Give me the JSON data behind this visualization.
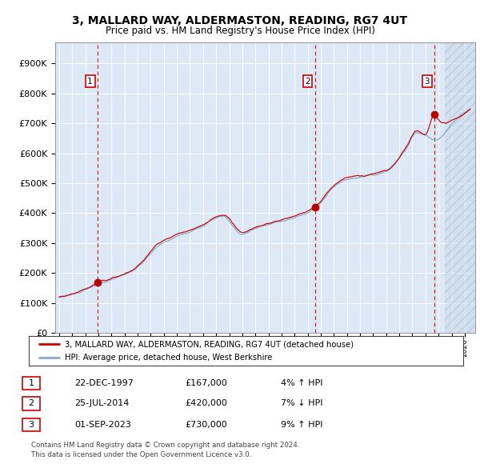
{
  "title": "3, MALLARD WAY, ALDERMASTON, READING, RG7 4UT",
  "subtitle": "Price paid vs. HM Land Registry's House Price Index (HPI)",
  "sale_prices": [
    167000,
    420000,
    730000
  ],
  "sale_years": [
    1997.9167,
    2014.5417,
    2023.6667
  ],
  "red_line_color": "#cc0000",
  "blue_line_color": "#88aacc",
  "plot_bg_color": "#dce8f5",
  "ylabel_ticks": [
    "£0",
    "£100K",
    "£200K",
    "£300K",
    "£400K",
    "£500K",
    "£600K",
    "£700K",
    "£800K",
    "£900K"
  ],
  "ylabel_values": [
    0,
    100000,
    200000,
    300000,
    400000,
    500000,
    600000,
    700000,
    800000,
    900000
  ],
  "xmin": 1994.7,
  "xmax": 2026.8,
  "ymin": 0,
  "ymax": 970000,
  "legend_red": "3, MALLARD WAY, ALDERMASTON, READING, RG7 4UT (detached house)",
  "legend_blue": "HPI: Average price, detached house, West Berkshire",
  "footnote1": "Contains HM Land Registry data © Crown copyright and database right 2024.",
  "footnote2": "This data is licensed under the Open Government Licence v3.0.",
  "table": [
    {
      "label": "1",
      "date": "22-DEC-1997",
      "price": "£167,000",
      "hpi": "4% ↑ HPI"
    },
    {
      "label": "2",
      "date": "25-JUL-2014",
      "price": "£420,000",
      "hpi": "7% ↓ HPI"
    },
    {
      "label": "3",
      "date": "01-SEP-2023",
      "price": "£730,000",
      "hpi": "9% ↑ HPI"
    }
  ],
  "hpi_key_years": [
    1994.7,
    1995.5,
    1997.0,
    1998.0,
    1999.5,
    2001.0,
    2002.5,
    2004.0,
    2005.5,
    2007.5,
    2009.0,
    2010.0,
    2011.5,
    2013.5,
    2014.5,
    2016.0,
    2017.0,
    2018.5,
    2020.0,
    2021.5,
    2022.3,
    2023.0,
    2023.8,
    2024.5,
    2025.5,
    2026.8
  ],
  "hpi_key_vals": [
    115000,
    122000,
    143000,
    163000,
    185000,
    218000,
    288000,
    322000,
    345000,
    388000,
    330000,
    348000,
    368000,
    392000,
    414000,
    487000,
    512000,
    523000,
    538000,
    612000,
    670000,
    658000,
    642000,
    670000,
    720000,
    755000
  ],
  "red_key_years": [
    1994.7,
    1995.5,
    1997.0,
    1997.9167,
    1999.5,
    2001.0,
    2002.5,
    2004.0,
    2005.5,
    2007.5,
    2009.0,
    2010.0,
    2011.5,
    2013.5,
    2014.5417,
    2016.0,
    2017.0,
    2018.5,
    2020.0,
    2021.5,
    2022.3,
    2023.0,
    2023.6667,
    2024.2,
    2025.0,
    2026.8
  ],
  "red_key_vals": [
    117000,
    124000,
    146000,
    167000,
    188000,
    222000,
    294000,
    328000,
    350000,
    395000,
    336000,
    352000,
    372000,
    398000,
    420000,
    492000,
    518000,
    528000,
    542000,
    618000,
    675000,
    664000,
    730000,
    700000,
    710000,
    762000
  ],
  "hatch_start": 2024.5
}
